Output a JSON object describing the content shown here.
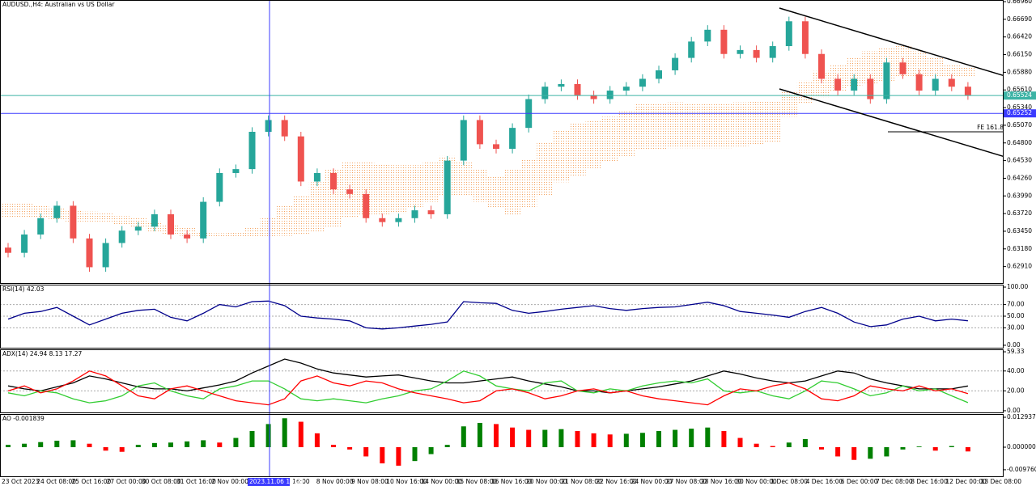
{
  "chart_data": [
    {
      "type": "candlestick",
      "title": "AUDUSD.,H4: Australian vs US Dollar",
      "open": [
        0.632,
        0.6312,
        0.634,
        0.6365,
        0.6384,
        0.6334,
        0.629,
        0.6327,
        0.6346,
        0.6352,
        0.6371,
        0.634,
        0.6334,
        0.639,
        0.6434,
        0.644,
        0.6497,
        0.6515,
        0.649,
        0.6421,
        0.6434,
        0.6409,
        0.6402,
        0.6365,
        0.6359,
        0.6365,
        0.6377,
        0.6371,
        0.6453,
        0.6515,
        0.6478,
        0.6471,
        0.6503,
        0.6547,
        0.6566,
        0.657,
        0.6553,
        0.6547,
        0.656,
        0.6566,
        0.6578,
        0.6591,
        0.661,
        0.6635,
        0.6653,
        0.6616,
        0.6622,
        0.661,
        0.6628,
        0.6666,
        0.6616,
        0.6578,
        0.656,
        0.6578,
        0.6547,
        0.6603,
        0.6585,
        0.656,
        0.6578,
        0.6566
      ],
      "high": [
        0.6327,
        0.6347,
        0.6372,
        0.6391,
        0.6391,
        0.6341,
        0.6334,
        0.6353,
        0.6359,
        0.6378,
        0.6378,
        0.6347,
        0.6397,
        0.6441,
        0.6447,
        0.6504,
        0.6522,
        0.6522,
        0.6497,
        0.6441,
        0.6441,
        0.6416,
        0.6409,
        0.6372,
        0.6372,
        0.6384,
        0.6384,
        0.646,
        0.6522,
        0.6522,
        0.6485,
        0.651,
        0.6554,
        0.6573,
        0.6577,
        0.6577,
        0.656,
        0.6567,
        0.6573,
        0.6585,
        0.6598,
        0.6617,
        0.6642,
        0.666,
        0.666,
        0.6629,
        0.6629,
        0.6635,
        0.6673,
        0.6673,
        0.6623,
        0.6585,
        0.6585,
        0.6585,
        0.661,
        0.661,
        0.6592,
        0.6585,
        0.6585,
        0.6573
      ],
      "low": [
        0.6305,
        0.6305,
        0.6333,
        0.6358,
        0.6327,
        0.6283,
        0.6283,
        0.632,
        0.6339,
        0.6345,
        0.6333,
        0.6327,
        0.6327,
        0.6383,
        0.6427,
        0.6433,
        0.649,
        0.6483,
        0.6414,
        0.6414,
        0.6402,
        0.6395,
        0.6358,
        0.6352,
        0.6352,
        0.6358,
        0.6364,
        0.6364,
        0.6446,
        0.6471,
        0.6464,
        0.6464,
        0.6496,
        0.654,
        0.6559,
        0.6546,
        0.654,
        0.654,
        0.6553,
        0.6559,
        0.6571,
        0.6584,
        0.6603,
        0.6628,
        0.6609,
        0.6609,
        0.6603,
        0.6603,
        0.6621,
        0.6609,
        0.6571,
        0.6553,
        0.6553,
        0.654,
        0.654,
        0.6578,
        0.6553,
        0.6553,
        0.6559,
        0.6546
      ],
      "close": [
        0.6312,
        0.634,
        0.6365,
        0.6384,
        0.6334,
        0.629,
        0.6327,
        0.6346,
        0.6352,
        0.6371,
        0.634,
        0.6334,
        0.639,
        0.6434,
        0.644,
        0.6497,
        0.6515,
        0.649,
        0.6421,
        0.6434,
        0.6409,
        0.6402,
        0.6365,
        0.6359,
        0.6365,
        0.6377,
        0.6371,
        0.6453,
        0.6515,
        0.6478,
        0.6471,
        0.6503,
        0.6547,
        0.6566,
        0.657,
        0.6553,
        0.6547,
        0.656,
        0.6566,
        0.6578,
        0.6591,
        0.661,
        0.6635,
        0.6653,
        0.6616,
        0.6622,
        0.661,
        0.6628,
        0.6666,
        0.6616,
        0.6578,
        0.656,
        0.6578,
        0.6547,
        0.6603,
        0.6585,
        0.656,
        0.6578,
        0.6566,
        0.6553
      ],
      "up_color": "#26a69a",
      "down_color": "#ef5350",
      "cloud": {
        "span_a": [
          0.6388,
          0.6388,
          0.6385,
          0.638,
          0.6378,
          0.6375,
          0.6372,
          0.6368,
          0.6365,
          0.636,
          0.6355,
          0.635,
          0.6345,
          0.6342,
          0.6345,
          0.635,
          0.6365,
          0.6385,
          0.64,
          0.642,
          0.644,
          0.645,
          0.645,
          0.6448,
          0.6446,
          0.6446,
          0.645,
          0.646,
          0.645,
          0.644,
          0.643,
          0.644,
          0.6455,
          0.648,
          0.65,
          0.651,
          0.6515,
          0.652,
          0.653,
          0.654,
          0.654,
          0.6542,
          0.654,
          0.654,
          0.654,
          0.6542,
          0.6545,
          0.6545,
          0.656,
          0.6575,
          0.659,
          0.66,
          0.661,
          0.662,
          0.6625,
          0.6628,
          0.662,
          0.661,
          0.66,
          0.6595
        ],
        "span_b": [
          0.6365,
          0.6365,
          0.6365,
          0.6362,
          0.636,
          0.636,
          0.636,
          0.6355,
          0.635,
          0.6345,
          0.634,
          0.6338,
          0.6336,
          0.6335,
          0.6335,
          0.6335,
          0.6336,
          0.6338,
          0.634,
          0.6345,
          0.635,
          0.6365,
          0.637,
          0.637,
          0.6372,
          0.638,
          0.639,
          0.64,
          0.64,
          0.639,
          0.638,
          0.637,
          0.638,
          0.64,
          0.642,
          0.643,
          0.644,
          0.645,
          0.646,
          0.647,
          0.647,
          0.6472,
          0.6472,
          0.6472,
          0.6472,
          0.6475,
          0.6478,
          0.648,
          0.652,
          0.654,
          0.655,
          0.656,
          0.6565,
          0.657,
          0.6575,
          0.658,
          0.658,
          0.658,
          0.658,
          0.658
        ],
        "colors": [
          "#f4a460",
          "#c8a2dc"
        ]
      },
      "price_lines": [
        {
          "value": 0.65524,
          "color": "#3cb3a5"
        },
        {
          "value": 0.65252,
          "color": "#3b3bff"
        }
      ],
      "fe_label": "FE 161.8",
      "ylim": [
        0.62646,
        0.66985
      ],
      "yticks": [
        {
          "value": 0.6696,
          "label": "0.66960"
        },
        {
          "value": 0.6669,
          "label": "0.66690"
        },
        {
          "value": 0.6642,
          "label": "0.66420"
        },
        {
          "value": 0.6615,
          "label": "0.66150"
        },
        {
          "value": 0.6588,
          "label": "0.65880"
        },
        {
          "value": 0.6561,
          "label": "0.65610"
        },
        {
          "value": 0.6534,
          "label": "0.65340"
        },
        {
          "value": 0.6507,
          "label": "0.65070"
        },
        {
          "value": 0.648,
          "label": "0.64800"
        },
        {
          "value": 0.6453,
          "label": "0.64530"
        },
        {
          "value": 0.6426,
          "label": "0.64260"
        },
        {
          "value": 0.6399,
          "label": "0.63990"
        },
        {
          "value": 0.6372,
          "label": "0.63720"
        },
        {
          "value": 0.6345,
          "label": "0.63450"
        },
        {
          "value": 0.6318,
          "label": "0.63180"
        },
        {
          "value": 0.6291,
          "label": "0.62910"
        }
      ],
      "grid": false
    },
    {
      "type": "line",
      "title": "RSI(14) 42.03",
      "series": [
        {
          "color": "#00008b",
          "values": [
            45,
            55,
            58,
            65,
            50,
            35,
            45,
            55,
            60,
            62,
            48,
            42,
            55,
            70,
            66,
            75,
            76,
            68,
            50,
            47,
            45,
            42,
            30,
            28,
            30,
            33,
            36,
            40,
            75,
            73,
            72,
            60,
            55,
            58,
            62,
            65,
            68,
            63,
            60,
            63,
            65,
            66,
            70,
            74,
            68,
            58,
            55,
            52,
            48,
            58,
            65,
            55,
            40,
            32,
            35,
            45,
            50,
            42,
            45,
            42.03
          ]
        }
      ],
      "ylim": [
        -5.6,
        104.2
      ],
      "yticks": [
        {
          "value": 100,
          "label": "100.00"
        },
        {
          "value": 70,
          "label": "70.00"
        },
        {
          "value": 50,
          "label": "50.00"
        },
        {
          "value": 30,
          "label": "30.00"
        },
        {
          "value": 0,
          "label": "0.00"
        }
      ],
      "grid": true
    },
    {
      "type": "line",
      "title": "ADX(14) 24.94 8.13 17.27",
      "series": [
        {
          "color": "#000000",
          "values": [
            25,
            22,
            20,
            24,
            28,
            35,
            32,
            28,
            24,
            22,
            22,
            20,
            23,
            26,
            30,
            38,
            45,
            52,
            48,
            42,
            38,
            36,
            34,
            35,
            36,
            33,
            30,
            28,
            28,
            30,
            32,
            34,
            30,
            27,
            24,
            20,
            20,
            18,
            20,
            22,
            24,
            27,
            30,
            35,
            40,
            37,
            33,
            30,
            28,
            30,
            35,
            40,
            38,
            32,
            28,
            25,
            22,
            22,
            22,
            24.94
          ]
        },
        {
          "color": "#32cd32",
          "values": [
            18,
            15,
            20,
            18,
            12,
            8,
            10,
            15,
            25,
            28,
            20,
            15,
            12,
            22,
            25,
            30,
            30,
            22,
            12,
            10,
            12,
            10,
            8,
            12,
            15,
            20,
            22,
            30,
            40,
            35,
            25,
            22,
            20,
            28,
            30,
            20,
            18,
            22,
            20,
            25,
            28,
            30,
            28,
            32,
            20,
            18,
            20,
            15,
            12,
            20,
            30,
            28,
            22,
            15,
            18,
            25,
            20,
            22,
            15,
            8.13
          ]
        },
        {
          "color": "#ff0000",
          "values": [
            20,
            25,
            18,
            22,
            30,
            40,
            35,
            25,
            15,
            12,
            22,
            25,
            20,
            15,
            10,
            8,
            6,
            12,
            30,
            35,
            28,
            25,
            30,
            28,
            22,
            18,
            15,
            12,
            8,
            10,
            20,
            22,
            18,
            12,
            15,
            20,
            22,
            18,
            20,
            15,
            12,
            10,
            8,
            6,
            15,
            22,
            20,
            25,
            28,
            22,
            12,
            10,
            15,
            25,
            22,
            20,
            25,
            20,
            22,
            17.27
          ]
        }
      ],
      "ylim": [
        -2.5,
        61.8
      ],
      "yticks": [
        59.33,
        {
          "value": 40,
          "label": "40.00"
        },
        {
          "value": 20,
          "label": "20.00"
        },
        {
          "value": 0,
          "label": "0.00"
        }
      ],
      "grid": true
    },
    {
      "type": "bar",
      "title": "AO -0.001839",
      "values": [
        0.001,
        0.0015,
        0.0022,
        0.0028,
        0.003,
        0.0015,
        -0.0015,
        -0.002,
        0.001,
        0.0018,
        0.002,
        0.0025,
        0.003,
        0.002,
        0.004,
        0.007,
        0.01,
        0.0125,
        0.011,
        0.006,
        0.001,
        -0.001,
        -0.004,
        -0.007,
        -0.008,
        -0.006,
        -0.003,
        0.001,
        0.009,
        0.0105,
        0.01,
        0.0085,
        0.0075,
        0.0075,
        0.0078,
        0.007,
        0.006,
        0.0055,
        0.0058,
        0.0062,
        0.007,
        0.0075,
        0.008,
        0.0085,
        0.007,
        0.004,
        0.0015,
        0.0005,
        0.002,
        0.0035,
        -0.001,
        -0.004,
        -0.0055,
        -0.005,
        -0.004,
        -0.001,
        0.0003,
        -0.0015,
        0.0005,
        -0.001839
      ],
      "up_color": "#008000",
      "down_color": "#ff0000",
      "ylim": [
        -0.012937,
        0.014335
      ],
      "yticks": [
        0.012937,
        {
          "value": 0,
          "label": "0.000000"
        },
        {
          "value": -0.00976,
          "label": "-0.009760"
        }
      ],
      "grid": false,
      "xtick_labels": [
        "23 Oct 2023",
        "24 Oct 08:00",
        "25 Oct 16:00",
        "27 Oct 00:00",
        "30 Oct 08:00",
        "31 Oct 16:00",
        "2 Nov 00:00",
        "3",
        "16:00",
        "8 Nov 00:00",
        "9 Nov 08:00",
        "10 Nov 16:00",
        "14 Nov 00:00",
        "15 Nov 08:00",
        "16 Nov 16:00",
        "20 Nov 00:00",
        "21 Nov 08:00",
        "22 Nov 16:00",
        "24 Nov 00:00",
        "27 Nov 08:00",
        "28 Nov 16:00",
        "30 Nov 00:00",
        "1 Dec 08:00",
        "4 Dec 16:00",
        "6 Dec 00:00",
        "7 Dec 08:00",
        "8 Dec 16:00",
        "12 Dec 00:00",
        "13 Dec 08:00"
      ],
      "crosshair_label": "2023.11.06 16:00"
    }
  ]
}
